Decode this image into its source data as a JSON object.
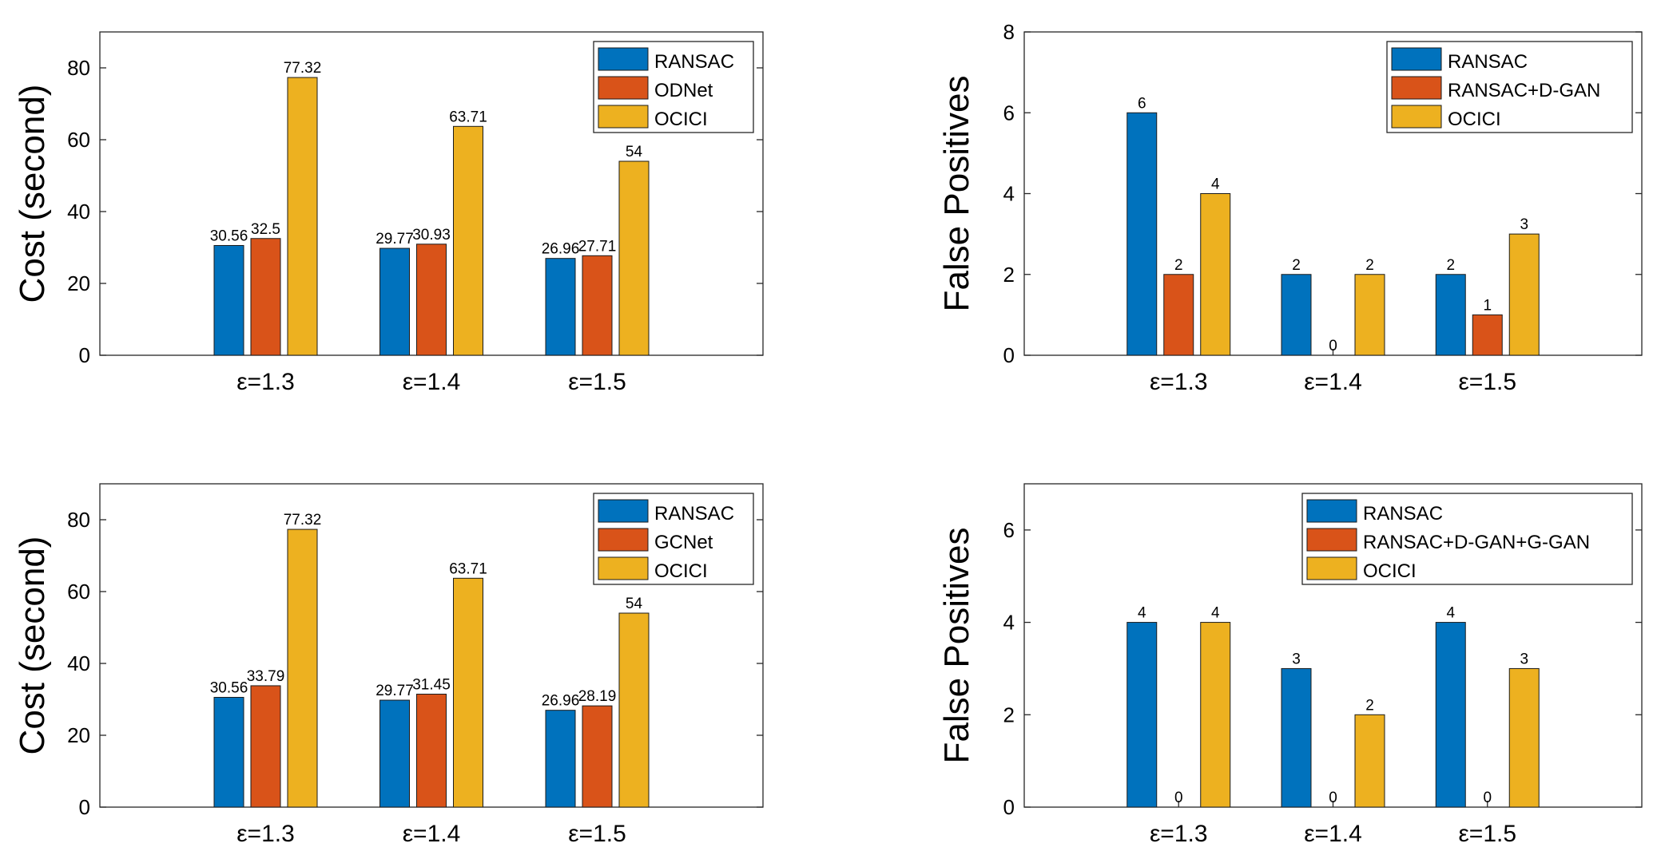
{
  "colors": {
    "blue": "#0072BD",
    "orange": "#D95319",
    "yellow": "#EDB120"
  },
  "chart_data": [
    {
      "type": "bar",
      "title": "",
      "xlabel": "",
      "ylabel": "Cost (second)",
      "categories": [
        "ε=1.3",
        "ε=1.4",
        "ε=1.5"
      ],
      "ylim": [
        0,
        90
      ],
      "yticks": [
        0,
        20,
        40,
        60,
        80
      ],
      "legend_position": "top-right",
      "series": [
        {
          "name": "RANSAC",
          "values": [
            30.56,
            29.77,
            26.96
          ],
          "labels": [
            "30.56",
            "29.77",
            "26.96"
          ]
        },
        {
          "name": "ODNet",
          "values": [
            32.5,
            30.93,
            27.71
          ],
          "labels": [
            "32.5",
            "30.93",
            "27.71"
          ]
        },
        {
          "name": "OCICI",
          "values": [
            77.32,
            63.71,
            54
          ],
          "labels": [
            "77.32",
            "63.71",
            "54"
          ]
        }
      ]
    },
    {
      "type": "bar",
      "title": "",
      "xlabel": "",
      "ylabel": "False Positives",
      "categories": [
        "ε=1.3",
        "ε=1.4",
        "ε=1.5"
      ],
      "ylim": [
        0,
        8
      ],
      "yticks": [
        0,
        2,
        4,
        6,
        8
      ],
      "legend_position": "top-right",
      "series": [
        {
          "name": "RANSAC",
          "values": [
            6,
            2,
            2
          ],
          "labels": [
            "6",
            "2",
            "2"
          ]
        },
        {
          "name": "RANSAC+D-GAN",
          "values": [
            2,
            0,
            1
          ],
          "labels": [
            "2",
            "0",
            "1"
          ]
        },
        {
          "name": "OCICI",
          "values": [
            4,
            2,
            3
          ],
          "labels": [
            "4",
            "2",
            "3"
          ]
        }
      ]
    },
    {
      "type": "bar",
      "title": "",
      "xlabel": "",
      "ylabel": "Cost (second)",
      "categories": [
        "ε=1.3",
        "ε=1.4",
        "ε=1.5"
      ],
      "ylim": [
        0,
        90
      ],
      "yticks": [
        0,
        20,
        40,
        60,
        80
      ],
      "legend_position": "top-right",
      "series": [
        {
          "name": "RANSAC",
          "values": [
            30.56,
            29.77,
            26.96
          ],
          "labels": [
            "30.56",
            "29.77",
            "26.96"
          ]
        },
        {
          "name": "GCNet",
          "values": [
            33.79,
            31.45,
            28.19
          ],
          "labels": [
            "33.79",
            "31.45",
            "28.19"
          ]
        },
        {
          "name": "OCICI",
          "values": [
            77.32,
            63.71,
            54
          ],
          "labels": [
            "77.32",
            "63.71",
            "54"
          ]
        }
      ]
    },
    {
      "type": "bar",
      "title": "",
      "xlabel": "",
      "ylabel": "False Positives",
      "categories": [
        "ε=1.3",
        "ε=1.4",
        "ε=1.5"
      ],
      "ylim": [
        0,
        7
      ],
      "yticks": [
        0,
        2,
        4,
        6
      ],
      "legend_position": "top-right",
      "series": [
        {
          "name": "RANSAC",
          "values": [
            4,
            3,
            4
          ],
          "labels": [
            "4",
            "3",
            "4"
          ]
        },
        {
          "name": "RANSAC+D-GAN+G-GAN",
          "values": [
            0,
            0,
            0
          ],
          "labels": [
            "0",
            "0",
            "0"
          ]
        },
        {
          "name": "OCICI",
          "values": [
            4,
            2,
            3
          ],
          "labels": [
            "4",
            "2",
            "3"
          ]
        }
      ]
    }
  ]
}
